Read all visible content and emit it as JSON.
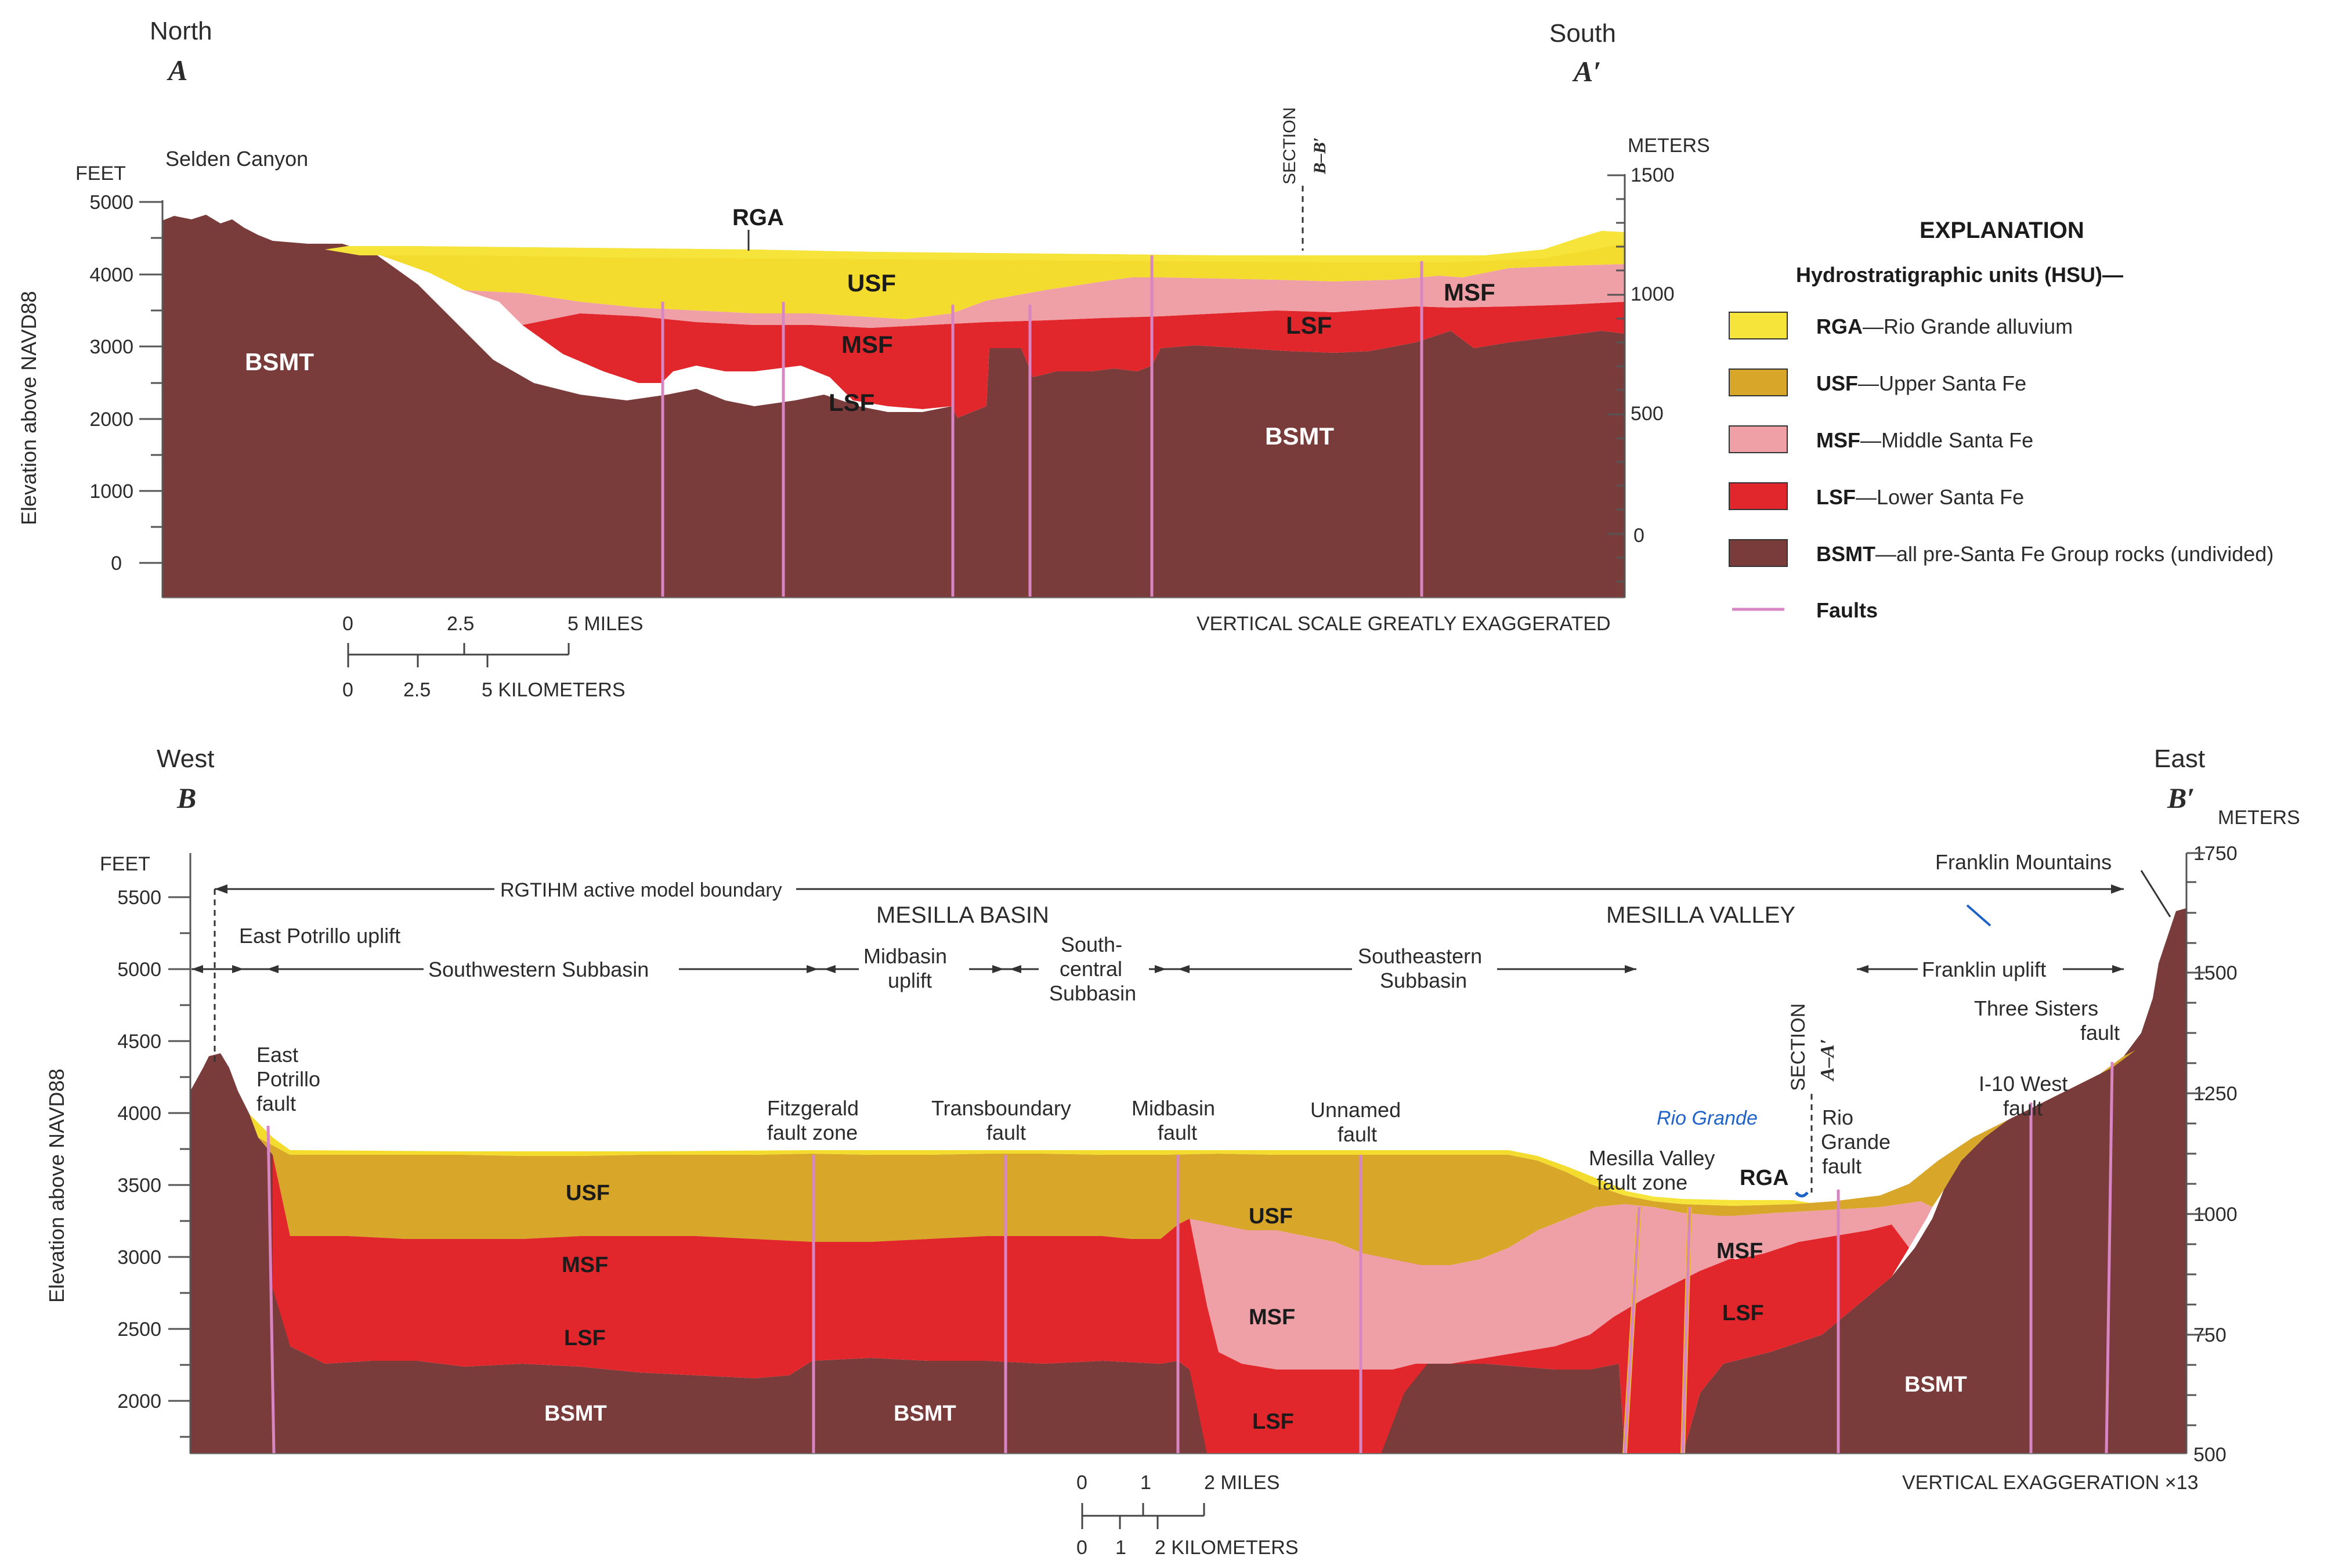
{
  "colors": {
    "RGA": "#f6e43a",
    "USF": "#d8a72a",
    "USF_top": "#f4dc2e",
    "MSF": "#efa0a6",
    "LSF": "#e2272c",
    "BSMT": "#7a3b3b",
    "fault": "#d886c3",
    "river": "#1f63c8"
  },
  "sectionA": {
    "dir_left": "North",
    "dir_right": "South",
    "letter_left": "A",
    "letter_right": "A′",
    "place": "Selden Canyon",
    "section_marker_1": "SECTION",
    "section_marker_2": "B–B′",
    "axis_left_title": "FEET",
    "axis_right_title": "METERS",
    "y_label": "Elevation above NAVD88",
    "ticks_feet": [
      "5000",
      "4000",
      "3000",
      "2000",
      "1000",
      "0"
    ],
    "ticks_meters": [
      "1500",
      "1000",
      "500",
      "0"
    ],
    "units": {
      "rga": "RGA",
      "usf": "USF",
      "msf_1": "MSF",
      "msf_2": "MSF",
      "lsf_1": "LSF",
      "lsf_2": "LSF",
      "bsmt_1": "BSMT",
      "bsmt_2": "BSMT"
    },
    "scale_miles": [
      "0",
      "2.5",
      "5 MILES"
    ],
    "scale_km": [
      "0",
      "2.5",
      "5 KILOMETERS"
    ],
    "vertical_note": "VERTICAL SCALE GREATLY EXAGGERATED"
  },
  "legend": {
    "title": "EXPLANATION",
    "subtitle": "Hydrostratigraphic units (HSU)—",
    "items": [
      {
        "code": "RGA",
        "desc": "—Rio Grande alluvium",
        "swatch": "RGA"
      },
      {
        "code": "USF",
        "desc": "—Upper Santa Fe",
        "swatch": "USF"
      },
      {
        "code": "MSF",
        "desc": "—Middle Santa Fe",
        "swatch": "MSF"
      },
      {
        "code": "LSF",
        "desc": "—Lower Santa Fe",
        "swatch": "LSF"
      },
      {
        "code": "BSMT",
        "desc": "—all pre-Santa Fe Group rocks (undivided)",
        "swatch": "BSMT"
      }
    ],
    "faults_label": "Faults"
  },
  "sectionB": {
    "dir_left": "West",
    "dir_right": "East",
    "letter_left": "B",
    "letter_right": "B′",
    "axis_left_title": "FEET",
    "axis_right_title": "METERS",
    "y_label": "Elevation above NAVD88",
    "ticks_feet": [
      "5500",
      "5000",
      "4500",
      "4000",
      "3500",
      "3000",
      "2500",
      "2000"
    ],
    "ticks_meters": [
      "1750",
      "1500",
      "1250",
      "1000",
      "750",
      "500"
    ],
    "boundary": "RGTIHM active model boundary",
    "franklin_mountains": "Franklin Mountains",
    "mesilla_basin": "MESILLA BASIN",
    "mesilla_valley": "MESILLA VALLEY",
    "east_potrillo_uplift": "East Potrillo uplift",
    "southwestern_subbasin": "Southwestern Subbasin",
    "midbasin_uplift_1": "Midbasin",
    "midbasin_uplift_2": "uplift",
    "south_central_1": "South-",
    "south_central_2": "central",
    "south_central_3": "Subbasin",
    "southeastern_1": "Southeastern",
    "southeastern_2": "Subbasin",
    "franklin_uplift": "Franklin uplift",
    "fault_east_potrillo": [
      "East",
      "Potrillo",
      "fault"
    ],
    "fault_fitzgerald": [
      "Fitzgerald",
      "fault zone"
    ],
    "fault_transboundary": [
      "Transboundary",
      "fault"
    ],
    "fault_midbasin": [
      "Midbasin",
      "fault"
    ],
    "fault_unnamed": [
      "Unnamed",
      "fault"
    ],
    "fault_mesilla_valley": [
      "Mesilla Valley",
      "fault zone"
    ],
    "fault_rio_grande": [
      "Rio",
      "Grande",
      "fault"
    ],
    "fault_i10": [
      "I-10 West",
      "fault"
    ],
    "fault_three_sisters": [
      "Three Sisters",
      "fault"
    ],
    "rio_grande": "Rio Grande",
    "section_marker_1": "SECTION",
    "section_marker_2": "A–A′",
    "units": {
      "usf_1": "USF",
      "usf_2": "USF",
      "msf_1": "MSF",
      "msf_2": "MSF",
      "msf_3": "MSF",
      "lsf_1": "LSF",
      "lsf_2": "LSF",
      "lsf_3": "LSF",
      "rga": "RGA",
      "bsmt_1": "BSMT",
      "bsmt_2": "BSMT",
      "bsmt_3": "BSMT"
    },
    "scale_miles": [
      "0",
      "1",
      "2 MILES"
    ],
    "scale_km": [
      "0",
      "1",
      "2 KILOMETERS"
    ],
    "vertical_note": "VERTICAL EXAGGERATION ×13"
  }
}
